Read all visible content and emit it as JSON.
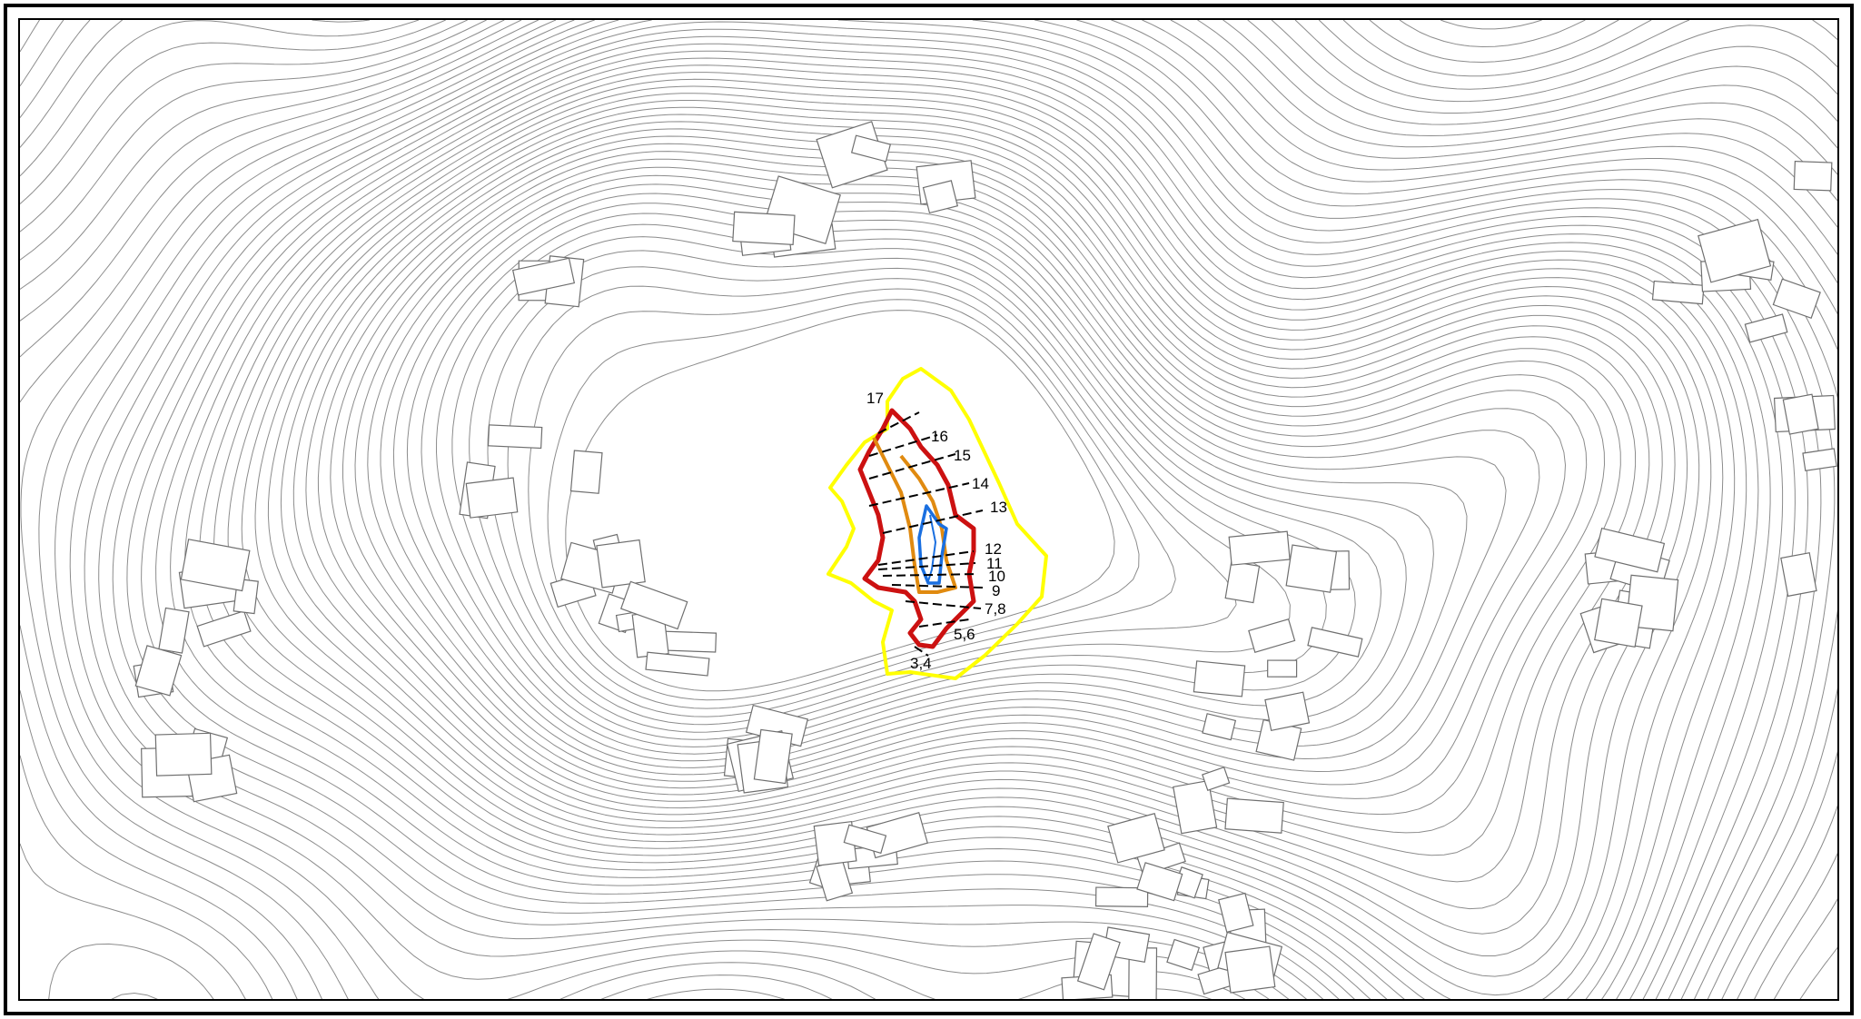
{
  "map": {
    "colors": {
      "contour": "#8c8c8c",
      "building": "#6f6f6f",
      "background": "#ffffff",
      "frame": "#000000",
      "zone_outer": "#ffff00",
      "zone_red": "#cc1111",
      "zone_orange": "#e08a10",
      "zone_blue": "#1a6fe0",
      "section_line": "#000000"
    },
    "section_labels": [
      "17",
      "16",
      "15",
      "14",
      "13",
      "12",
      "11",
      "10",
      "9",
      "7,8",
      "5,6",
      "3,4"
    ]
  }
}
